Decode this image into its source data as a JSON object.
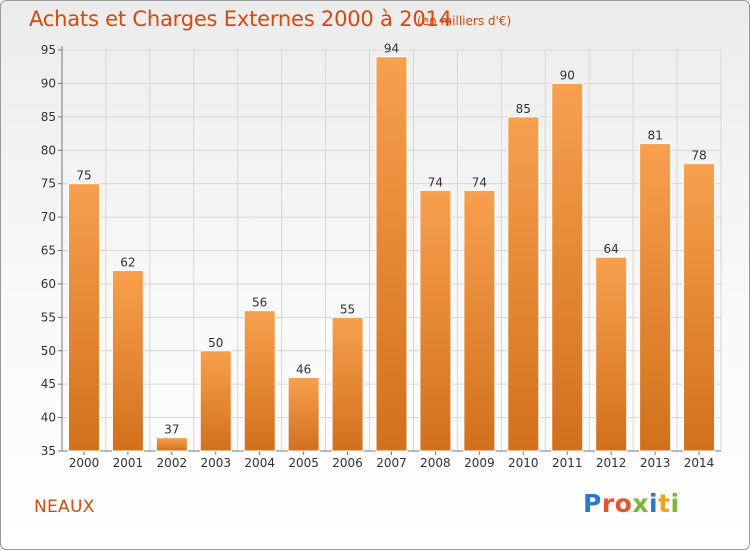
{
  "header": {
    "title": "Achats et Charges Externes 2000 à 2014",
    "subtitle": "(en milliers d'€)"
  },
  "footer": {
    "commune": "NEAUX",
    "logo": "Proxiti",
    "logo_colors": [
      "#2a78c8",
      "#e8532a",
      "#e8532a",
      "#7ab832",
      "#2a78c8",
      "#f4a21c",
      "#7ab832"
    ]
  },
  "chart_data": {
    "type": "bar",
    "title": "Achats et Charges Externes 2000 à 2014",
    "subtitle": "(en milliers d'€)",
    "categories": [
      "2000",
      "2001",
      "2002",
      "2003",
      "2004",
      "2005",
      "2006",
      "2007",
      "2008",
      "2009",
      "2010",
      "2011",
      "2012",
      "2013",
      "2014"
    ],
    "values": [
      75,
      62,
      37,
      50,
      56,
      46,
      55,
      94,
      74,
      74,
      85,
      90,
      64,
      81,
      78
    ],
    "ylim": [
      35,
      95
    ],
    "yticks": [
      35,
      40,
      45,
      50,
      55,
      60,
      65,
      70,
      75,
      80,
      85,
      90,
      95
    ],
    "grid": true,
    "bar_color_top": "#f7a04e",
    "bar_color_bottom": "#d2701c"
  }
}
